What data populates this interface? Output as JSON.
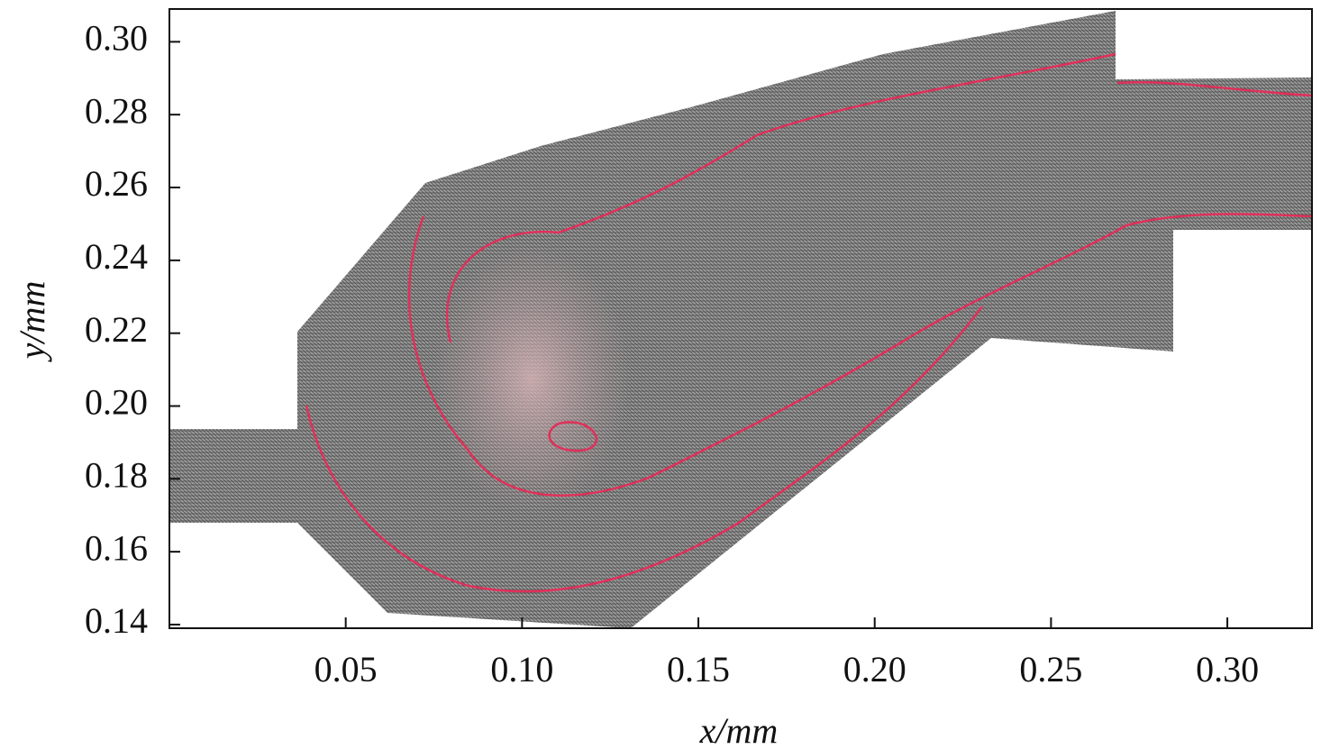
{
  "chart_data": {
    "type": "mesh",
    "xlabel": "x/mm",
    "ylabel": "y/mm",
    "xlim": [
      0,
      0.324
    ],
    "ylim": [
      0.139,
      0.309
    ],
    "xticks": [
      0.05,
      {
        "value": 0.1,
        "label": "0.10"
      },
      0.15,
      {
        "value": 0.2,
        "label": "0.20"
      },
      0.25,
      {
        "value": 0.3,
        "label": "0.30"
      }
    ],
    "yticks": [
      0.14,
      0.16,
      0.18,
      {
        "value": 0.2,
        "label": "0.20"
      },
      0.22,
      0.24,
      0.26,
      0.28,
      {
        "value": 0.3,
        "label": "0.30"
      }
    ]
  }
}
